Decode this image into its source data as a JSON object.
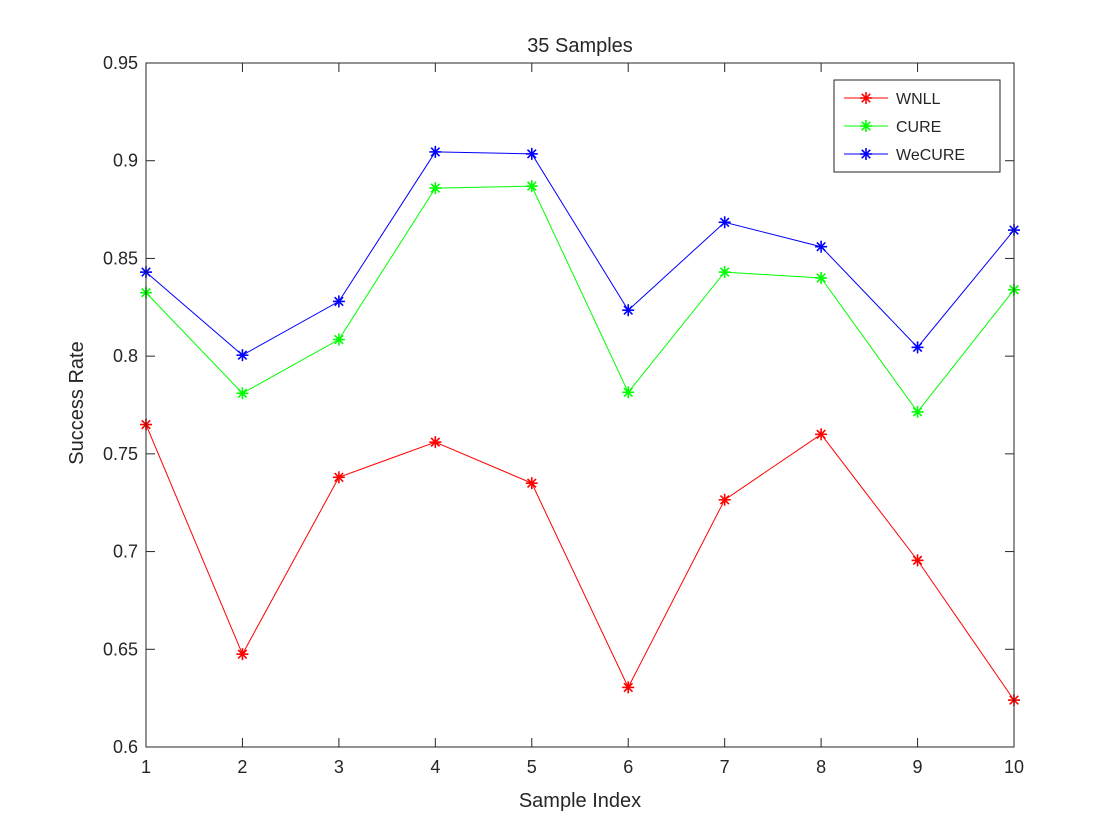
{
  "chart_data": {
    "type": "line",
    "title": "35 Samples",
    "xlabel": "Sample Index",
    "ylabel": "Success Rate",
    "x": [
      1,
      2,
      3,
      4,
      5,
      6,
      7,
      8,
      9,
      10
    ],
    "xlim": [
      1,
      10
    ],
    "ylim": [
      0.6,
      0.95
    ],
    "xticks": [
      "1",
      "2",
      "3",
      "4",
      "5",
      "6",
      "7",
      "8",
      "9",
      "10"
    ],
    "yticks": [
      "0.6",
      "0.65",
      "0.7",
      "0.75",
      "0.8",
      "0.85",
      "0.9",
      "0.95"
    ],
    "grid": false,
    "legend_position": "top-right",
    "marker": "asterisk",
    "series": [
      {
        "name": "WNLL",
        "color": "#ff0000",
        "values": [
          0.765,
          0.6475,
          0.738,
          0.756,
          0.735,
          0.6305,
          0.7265,
          0.76,
          0.6955,
          0.624
        ]
      },
      {
        "name": "CURE",
        "color": "#00ff00",
        "values": [
          0.8325,
          0.781,
          0.8085,
          0.886,
          0.887,
          0.7815,
          0.843,
          0.84,
          0.7715,
          0.834
        ]
      },
      {
        "name": "WeCURE",
        "color": "#0000ff",
        "values": [
          0.843,
          0.8005,
          0.828,
          0.9045,
          0.9035,
          0.8235,
          0.8685,
          0.856,
          0.8045,
          0.8645
        ]
      }
    ]
  }
}
